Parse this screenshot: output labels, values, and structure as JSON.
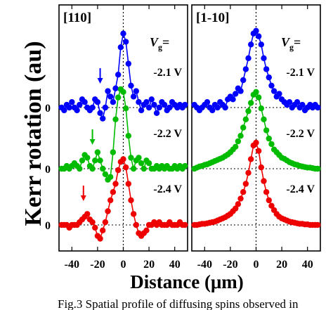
{
  "chart_data": {
    "type": "line",
    "ylabel": "Kerr rotation (au)",
    "xlabel": "Distance (μm)",
    "xlim": [
      -50,
      50
    ],
    "xticks": [
      "-40",
      "-20",
      "0",
      "20",
      "40"
    ],
    "offset_ticks": [
      "0",
      "0",
      "0"
    ],
    "vg_label": {
      "symbol": "V",
      "sub": "g",
      "suffix": "="
    },
    "panels": [
      {
        "title": "[110]",
        "series": [
          {
            "name": "-2.1 V",
            "color": "#0000ff",
            "x": [
              -48,
              -46,
              -44,
              -42,
              -40,
              -38,
              -36,
              -34,
              -32,
              -30,
              -28,
              -26,
              -24,
              -22,
              -20,
              -18,
              -16,
              -14,
              -12,
              -10,
              -8,
              -6,
              -4,
              -2,
              0,
              2,
              4,
              6,
              8,
              10,
              12,
              14,
              16,
              18,
              20,
              22,
              24,
              26,
              28,
              30,
              32,
              34,
              36,
              38,
              40,
              42,
              44,
              46,
              48
            ],
            "y": [
              0.0,
              -0.05,
              0.05,
              0.0,
              0.1,
              0.0,
              -0.05,
              0.05,
              0.15,
              0.1,
              0.0,
              -0.05,
              0.0,
              0.15,
              0.1,
              -0.1,
              -0.2,
              0.0,
              0.3,
              0.2,
              0.1,
              0.35,
              0.6,
              1.1,
              1.35,
              1.2,
              0.8,
              0.4,
              0.2,
              0.3,
              0.1,
              -0.05,
              0.05,
              0.1,
              0.0,
              0.15,
              0.05,
              -0.1,
              0.0,
              0.1,
              0.05,
              -0.05,
              0.0,
              0.1,
              0.05,
              0.0,
              0.05,
              0.0,
              0.05
            ]
          },
          {
            "name": "-2.2 V",
            "color": "#00bb00",
            "x": [
              -48,
              -46,
              -44,
              -42,
              -40,
              -38,
              -36,
              -34,
              -32,
              -30,
              -28,
              -26,
              -24,
              -22,
              -20,
              -18,
              -16,
              -14,
              -12,
              -10,
              -8,
              -6,
              -4,
              -2,
              0,
              2,
              4,
              6,
              8,
              10,
              12,
              14,
              16,
              18,
              20,
              22,
              24,
              26,
              28,
              30,
              32,
              34,
              36,
              38,
              40,
              42,
              44,
              46,
              48
            ],
            "y": [
              0.0,
              0.0,
              0.05,
              0.0,
              0.05,
              0.1,
              0.05,
              0.0,
              0.15,
              0.25,
              0.2,
              0.05,
              0.0,
              0.15,
              0.3,
              0.15,
              0.0,
              -0.1,
              -0.2,
              -0.15,
              0.3,
              0.9,
              1.3,
              1.45,
              1.4,
              1.1,
              0.6,
              0.2,
              0.0,
              0.15,
              0.2,
              0.1,
              0.0,
              0.15,
              0.1,
              0.0,
              0.0,
              0.05,
              0.0,
              0.05,
              0.0,
              0.05,
              0.0,
              0.0,
              0.05,
              0.0,
              0.05,
              0.0,
              0.05
            ]
          },
          {
            "name": "-2.4 V",
            "color": "#ee0000",
            "x": [
              -48,
              -46,
              -44,
              -42,
              -40,
              -38,
              -36,
              -34,
              -32,
              -30,
              -28,
              -26,
              -24,
              -22,
              -20,
              -18,
              -16,
              -14,
              -12,
              -10,
              -8,
              -6,
              -4,
              -2,
              0,
              2,
              4,
              6,
              8,
              10,
              12,
              14,
              16,
              18,
              20,
              22,
              24,
              26,
              28,
              30,
              32,
              34,
              36,
              38,
              40,
              42,
              44,
              46,
              48
            ],
            "y": [
              0.0,
              0.0,
              0.0,
              -0.05,
              0.0,
              0.0,
              0.0,
              0.05,
              0.1,
              0.15,
              0.2,
              0.1,
              0.05,
              -0.05,
              -0.2,
              -0.25,
              -0.1,
              0.05,
              0.25,
              0.45,
              0.6,
              0.75,
              1.0,
              1.15,
              1.2,
              1.05,
              0.75,
              0.45,
              0.2,
              0.0,
              -0.15,
              -0.2,
              -0.15,
              -0.1,
              0.0,
              0.0,
              0.05,
              0.0,
              0.05,
              0.0,
              0.0,
              0.0,
              0.05,
              0.0,
              0.0,
              0.0,
              0.05,
              0.0,
              0.0
            ]
          }
        ],
        "arrows": [
          {
            "series": "-2.1 V",
            "x": -18,
            "color": "#0000ff"
          },
          {
            "series": "-2.2 V",
            "x": -24,
            "color": "#00bb00"
          },
          {
            "series": "-2.4 V",
            "x": -31,
            "color": "#ee0000"
          }
        ]
      },
      {
        "title": "[1-10]",
        "series": [
          {
            "name": "-2.1 V",
            "color": "#0000ff",
            "x": [
              -48,
              -46,
              -44,
              -42,
              -40,
              -38,
              -36,
              -34,
              -32,
              -30,
              -28,
              -26,
              -24,
              -22,
              -20,
              -18,
              -16,
              -14,
              -12,
              -10,
              -8,
              -6,
              -4,
              -2,
              0,
              2,
              4,
              6,
              8,
              10,
              12,
              14,
              16,
              18,
              20,
              22,
              24,
              26,
              28,
              30,
              32,
              34,
              36,
              38,
              40,
              42,
              44,
              46,
              48
            ],
            "y": [
              0.05,
              0.0,
              -0.05,
              0.0,
              0.05,
              0.1,
              0.0,
              -0.05,
              0.05,
              0.0,
              0.1,
              0.05,
              0.0,
              0.15,
              0.2,
              0.15,
              0.25,
              0.35,
              0.3,
              0.5,
              0.7,
              0.9,
              1.15,
              1.35,
              1.4,
              1.3,
              1.15,
              0.9,
              0.7,
              0.55,
              0.4,
              0.3,
              0.2,
              0.25,
              0.15,
              0.1,
              0.05,
              0.1,
              0.0,
              0.05,
              0.1,
              0.0,
              0.05,
              -0.05,
              0.0,
              0.05,
              0.0,
              0.05,
              0.0
            ]
          },
          {
            "name": "-2.2 V",
            "color": "#00bb00",
            "x": [
              -48,
              -46,
              -44,
              -42,
              -40,
              -38,
              -36,
              -34,
              -32,
              -30,
              -28,
              -26,
              -24,
              -22,
              -20,
              -18,
              -16,
              -14,
              -12,
              -10,
              -8,
              -6,
              -4,
              -2,
              0,
              2,
              4,
              6,
              8,
              10,
              12,
              14,
              16,
              18,
              20,
              22,
              24,
              26,
              28,
              30,
              32,
              34,
              36,
              38,
              40,
              42,
              44,
              46,
              48
            ],
            "y": [
              0.0,
              0.02,
              0.04,
              0.05,
              0.07,
              0.08,
              0.1,
              0.12,
              0.14,
              0.16,
              0.18,
              0.2,
              0.23,
              0.26,
              0.3,
              0.35,
              0.4,
              0.5,
              0.6,
              0.75,
              0.9,
              1.05,
              1.2,
              1.35,
              1.4,
              1.3,
              1.1,
              0.9,
              0.7,
              0.55,
              0.45,
              0.35,
              0.3,
              0.25,
              0.2,
              0.18,
              0.15,
              0.12,
              0.1,
              0.08,
              0.07,
              0.05,
              0.04,
              0.03,
              0.02,
              0.02,
              0.01,
              0.0,
              0.0
            ]
          },
          {
            "name": "-2.4 V",
            "color": "#ee0000",
            "x": [
              -48,
              -46,
              -44,
              -42,
              -40,
              -38,
              -36,
              -34,
              -32,
              -30,
              -28,
              -26,
              -24,
              -22,
              -20,
              -18,
              -16,
              -14,
              -12,
              -10,
              -8,
              -6,
              -4,
              -2,
              0,
              2,
              4,
              6,
              8,
              10,
              12,
              14,
              16,
              18,
              20,
              22,
              24,
              26,
              28,
              30,
              32,
              34,
              36,
              38,
              40,
              42,
              44,
              46,
              48
            ],
            "y": [
              0.0,
              0.0,
              0.01,
              0.02,
              0.02,
              0.03,
              0.04,
              0.05,
              0.06,
              0.08,
              0.1,
              0.12,
              0.14,
              0.17,
              0.2,
              0.25,
              0.3,
              0.38,
              0.48,
              0.6,
              0.75,
              0.95,
              1.2,
              1.45,
              1.5,
              1.35,
              1.05,
              0.8,
              0.6,
              0.45,
              0.35,
              0.27,
              0.2,
              0.15,
              0.12,
              0.1,
              0.08,
              0.06,
              0.05,
              0.04,
              0.03,
              0.02,
              0.02,
              0.01,
              0.01,
              0.0,
              0.0,
              0.0,
              0.0
            ]
          }
        ],
        "arrows": []
      }
    ],
    "grid": false,
    "zero_lines": "dotted"
  },
  "caption": "Fig.3  Spatial  profile  of  diffusing  spins  observed  in"
}
